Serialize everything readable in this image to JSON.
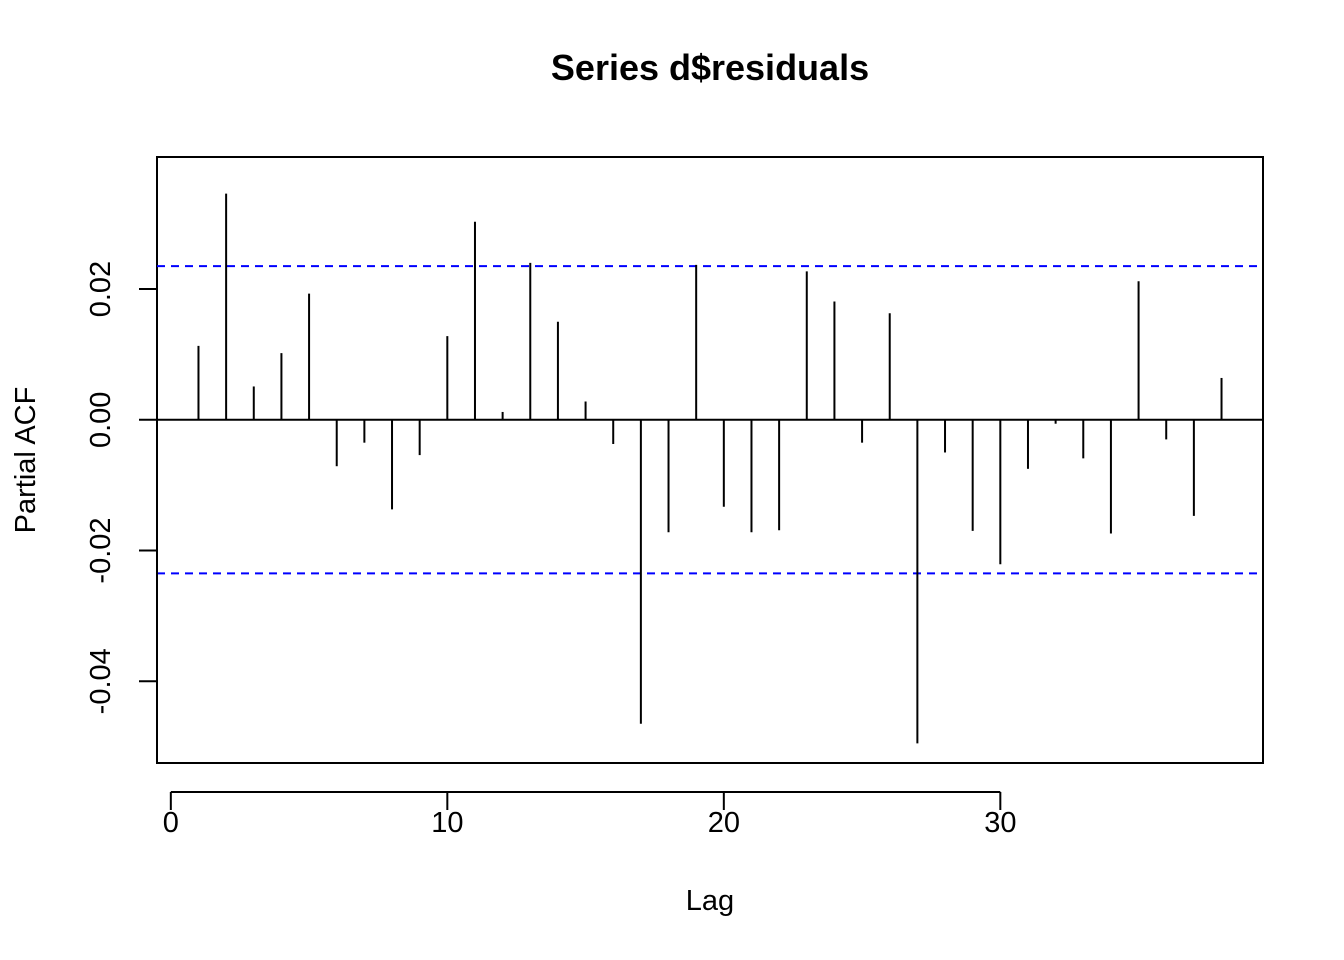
{
  "chart_data": {
    "type": "bar",
    "subtype": "pacf-spikes",
    "title": "Series  d$residuals",
    "xlabel": "Lag",
    "ylabel": "Partial ACF",
    "xlim": [
      -0.5,
      39.5
    ],
    "ylim": [
      -0.0525,
      0.0402
    ],
    "x_ticks": [
      0,
      10,
      20,
      30
    ],
    "x_tick_labels": [
      "0",
      "10",
      "20",
      "30"
    ],
    "y_ticks": [
      -0.04,
      -0.02,
      0.0,
      0.02
    ],
    "y_tick_labels": [
      "-0.04",
      "-0.02",
      "0.00",
      "0.02"
    ],
    "confidence_bound": 0.0235,
    "lags": [
      1,
      2,
      3,
      4,
      5,
      6,
      7,
      8,
      9,
      10,
      11,
      12,
      13,
      14,
      15,
      16,
      17,
      18,
      19,
      20,
      21,
      22,
      23,
      24,
      25,
      26,
      27,
      28,
      29,
      30,
      31,
      32,
      33,
      34,
      35,
      36,
      37,
      38
    ],
    "values": [
      0.0113,
      0.0346,
      0.0051,
      0.0102,
      0.0193,
      -0.0071,
      -0.0035,
      -0.0137,
      -0.0054,
      0.0128,
      0.0303,
      0.0012,
      0.024,
      0.015,
      0.0028,
      -0.0037,
      -0.0465,
      -0.0172,
      0.0237,
      -0.0133,
      -0.0172,
      -0.0169,
      0.0227,
      0.0181,
      -0.0035,
      0.0163,
      -0.0495,
      -0.005,
      -0.017,
      -0.0221,
      -0.0075,
      -0.0006,
      -0.0059,
      -0.0174,
      0.0212,
      -0.003,
      -0.0147,
      0.0064
    ],
    "colors": {
      "spike": "#000000",
      "bound": "#0000ff",
      "zero": "#000000"
    },
    "grid": false
  }
}
